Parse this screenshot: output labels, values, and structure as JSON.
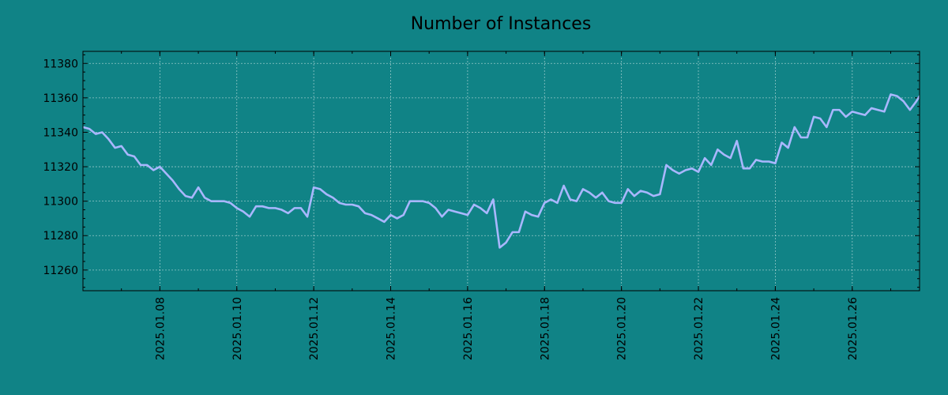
{
  "colors": {
    "background": "#108386",
    "line": "#a9b7ff",
    "axes": "#000000",
    "grid": "#ffffff"
  },
  "chart_data": {
    "type": "line",
    "title": "Number of Instances",
    "xlabel": "",
    "ylabel": "",
    "x_axis": "date",
    "xlim": [
      "2025-01-06",
      "2025-01-27T18:00"
    ],
    "ylim": [
      11248,
      11387
    ],
    "y_ticks": [
      11260,
      11280,
      11300,
      11320,
      11340,
      11360,
      11380
    ],
    "x_ticks": [
      "2025.01.08",
      "2025.01.10",
      "2025.01.12",
      "2025.01.14",
      "2025.01.16",
      "2025.01.18",
      "2025.01.20",
      "2025.01.22",
      "2025.01.24",
      "2025.01.26"
    ],
    "grid": true,
    "legend": "none",
    "series": [
      {
        "x": [
          "2025-01-06T00:00",
          "2025-01-06T04:00",
          "2025-01-06T08:00",
          "2025-01-06T12:00",
          "2025-01-06T16:00",
          "2025-01-06T20:00",
          "2025-01-07T00:00",
          "2025-01-07T04:00",
          "2025-01-07T08:00",
          "2025-01-07T12:00",
          "2025-01-07T16:00",
          "2025-01-07T20:00",
          "2025-01-08T00:00",
          "2025-01-08T04:00",
          "2025-01-08T08:00",
          "2025-01-08T12:00",
          "2025-01-08T16:00",
          "2025-01-08T20:00",
          "2025-01-09T00:00",
          "2025-01-09T04:00",
          "2025-01-09T08:00",
          "2025-01-09T12:00",
          "2025-01-09T16:00",
          "2025-01-09T20:00",
          "2025-01-10T00:00",
          "2025-01-10T04:00",
          "2025-01-10T08:00",
          "2025-01-10T12:00",
          "2025-01-10T16:00",
          "2025-01-10T20:00",
          "2025-01-11T00:00",
          "2025-01-11T04:00",
          "2025-01-11T08:00",
          "2025-01-11T12:00",
          "2025-01-11T16:00",
          "2025-01-11T20:00",
          "2025-01-12T00:00",
          "2025-01-12T04:00",
          "2025-01-12T08:00",
          "2025-01-12T12:00",
          "2025-01-12T16:00",
          "2025-01-12T20:00",
          "2025-01-13T00:00",
          "2025-01-13T04:00",
          "2025-01-13T08:00",
          "2025-01-13T12:00",
          "2025-01-13T16:00",
          "2025-01-13T20:00",
          "2025-01-14T00:00",
          "2025-01-14T04:00",
          "2025-01-14T08:00",
          "2025-01-14T12:00",
          "2025-01-14T16:00",
          "2025-01-14T20:00",
          "2025-01-15T00:00",
          "2025-01-15T04:00",
          "2025-01-15T08:00",
          "2025-01-15T12:00",
          "2025-01-15T16:00",
          "2025-01-15T20:00",
          "2025-01-16T00:00",
          "2025-01-16T04:00",
          "2025-01-16T08:00",
          "2025-01-16T12:00",
          "2025-01-16T16:00",
          "2025-01-16T20:00",
          "2025-01-17T00:00",
          "2025-01-17T04:00",
          "2025-01-17T08:00",
          "2025-01-17T12:00",
          "2025-01-17T16:00",
          "2025-01-17T20:00",
          "2025-01-18T00:00",
          "2025-01-18T04:00",
          "2025-01-18T08:00",
          "2025-01-18T12:00",
          "2025-01-18T16:00",
          "2025-01-18T20:00",
          "2025-01-19T00:00",
          "2025-01-19T04:00",
          "2025-01-19T08:00",
          "2025-01-19T12:00",
          "2025-01-19T16:00",
          "2025-01-19T20:00",
          "2025-01-20T00:00",
          "2025-01-20T04:00",
          "2025-01-20T08:00",
          "2025-01-20T12:00",
          "2025-01-20T16:00",
          "2025-01-20T20:00",
          "2025-01-21T00:00",
          "2025-01-21T04:00",
          "2025-01-21T08:00",
          "2025-01-21T12:00",
          "2025-01-21T16:00",
          "2025-01-21T20:00",
          "2025-01-22T00:00",
          "2025-01-22T04:00",
          "2025-01-22T08:00",
          "2025-01-22T12:00",
          "2025-01-22T16:00",
          "2025-01-22T20:00",
          "2025-01-23T00:00",
          "2025-01-23T04:00",
          "2025-01-23T08:00",
          "2025-01-23T12:00",
          "2025-01-23T16:00",
          "2025-01-23T20:00",
          "2025-01-24T00:00",
          "2025-01-24T04:00",
          "2025-01-24T08:00",
          "2025-01-24T12:00",
          "2025-01-24T16:00",
          "2025-01-24T20:00",
          "2025-01-25T00:00",
          "2025-01-25T04:00",
          "2025-01-25T08:00",
          "2025-01-25T12:00",
          "2025-01-25T16:00",
          "2025-01-25T20:00",
          "2025-01-26T00:00",
          "2025-01-26T04:00",
          "2025-01-26T08:00",
          "2025-01-26T12:00",
          "2025-01-26T16:00",
          "2025-01-26T20:00",
          "2025-01-27T00:00",
          "2025-01-27T04:00",
          "2025-01-27T08:00",
          "2025-01-27T12:00",
          "2025-01-27T16:00",
          "2025-01-27T18:00"
        ],
        "y": [
          11343,
          11342,
          11339,
          11340,
          11336,
          11331,
          11332,
          11327,
          11326,
          11321,
          11321,
          11318,
          11320,
          11316,
          11312,
          11307,
          11303,
          11302,
          11308,
          11302,
          11300,
          11300,
          11300,
          11299,
          11296,
          11294,
          11291,
          11297,
          11297,
          11296,
          11296,
          11295,
          11293,
          11296,
          11296,
          11291,
          11308,
          11307,
          11304,
          11302,
          11299,
          11298,
          11298,
          11297,
          11293,
          11292,
          11290,
          11288,
          11292,
          11290,
          11292,
          11300,
          11300,
          11300,
          11299,
          11296,
          11291,
          11295,
          11294,
          11293,
          11292,
          11298,
          11296,
          11293,
          11301,
          11273,
          11276,
          11282,
          11282,
          11294,
          11292,
          11291,
          11299,
          11301,
          11299,
          11309,
          11301,
          11300,
          11307,
          11305,
          11302,
          11305,
          11300,
          11299,
          11299,
          11307,
          11303,
          11306,
          11305,
          11303,
          11304,
          11321,
          11318,
          11316,
          11318,
          11319,
          11317,
          11325,
          11321,
          11330,
          11327,
          11325,
          11335,
          11319,
          11319,
          11324,
          11323,
          11323,
          11322,
          11334,
          11331,
          11343,
          11337,
          11337,
          11349,
          11348,
          11343,
          11353,
          11353,
          11349,
          11352,
          11351,
          11350,
          11354,
          11353,
          11352,
          11362,
          11361,
          11358,
          11353,
          11358,
          11361
        ]
      }
    ]
  }
}
